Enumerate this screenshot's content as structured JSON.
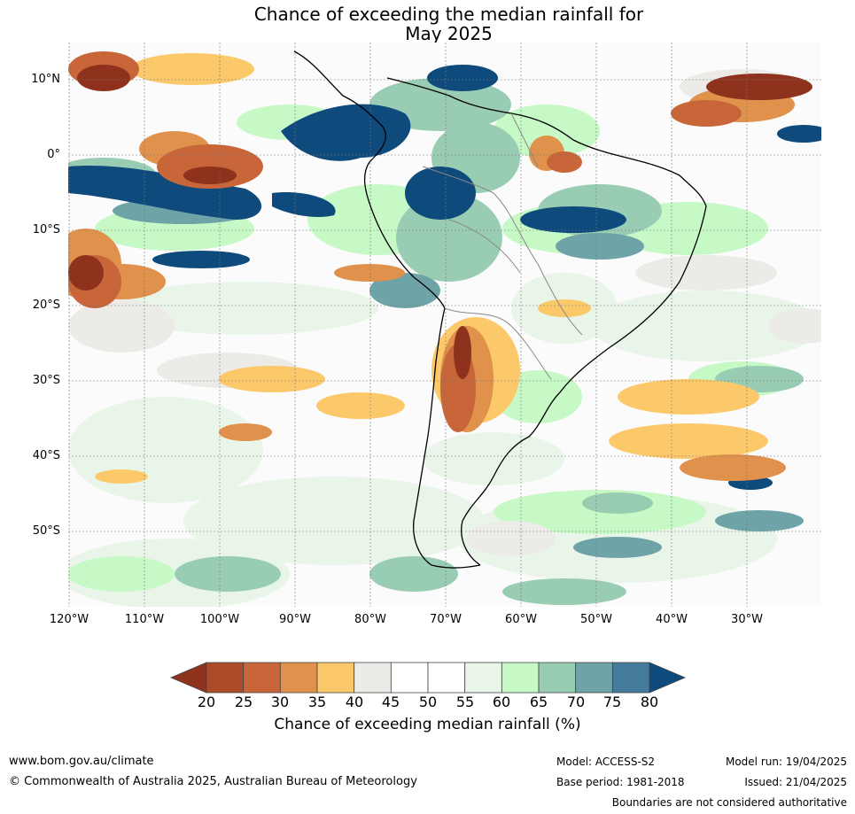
{
  "title": {
    "line1": "Chance of exceeding the median rainfall for",
    "line2": "May 2025"
  },
  "map": {
    "region": "South America",
    "lat_labels": [
      "10°N",
      "0°",
      "10°S",
      "20°S",
      "30°S",
      "40°S",
      "50°S"
    ],
    "lon_labels": [
      "120°W",
      "110°W",
      "100°W",
      "90°W",
      "80°W",
      "70°W",
      "60°W",
      "50°W",
      "40°W",
      "30°W"
    ]
  },
  "colorbar": {
    "title": "Chance of exceeding median rainfall (%)",
    "ticks": [
      "20",
      "25",
      "30",
      "35",
      "40",
      "45",
      "50",
      "55",
      "60",
      "65",
      "70",
      "75",
      "80"
    ],
    "colors": [
      "#8e321d",
      "#ad4a28",
      "#c8663a",
      "#e0914b",
      "#fcc96a",
      "#edebe7",
      "#ffffff",
      "#ffffff",
      "#e8f5e8",
      "#c6f9c6",
      "#99cdb3",
      "#6ea3a8",
      "#457b9b",
      "#0e4a7c"
    ]
  },
  "footer": {
    "website": "www.bom.gov.au/climate",
    "copyright": "© Commonwealth of Australia 2025, Australian Bureau of Meteorology",
    "model": "Model: ACCESS-S2",
    "base_period": "Base period: 1981-2018",
    "model_run": "Model run: 19/04/2025",
    "issued": "Issued: 21/04/2025",
    "disclaimer": "Boundaries are not considered authoritative"
  }
}
